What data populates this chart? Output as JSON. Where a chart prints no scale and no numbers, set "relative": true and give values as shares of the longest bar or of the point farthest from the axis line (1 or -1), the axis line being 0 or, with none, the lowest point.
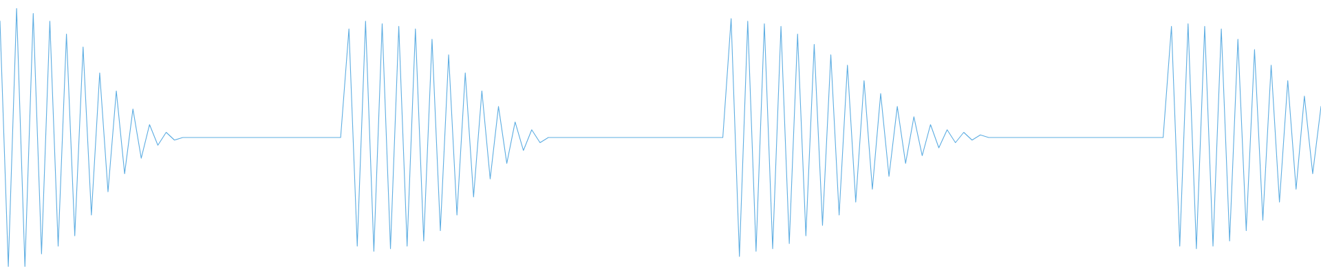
{
  "chart_data": {
    "type": "line",
    "relative": true,
    "categories": [
      null,
      null,
      null,
      null,
      null,
      null,
      null,
      null,
      null,
      null,
      null,
      null,
      null,
      null,
      null,
      null,
      null,
      null,
      null,
      null,
      null,
      null,
      null,
      null,
      null,
      null,
      null,
      null,
      null,
      null,
      null,
      null,
      null,
      null,
      null,
      null,
      null,
      null,
      null,
      null,
      null,
      null,
      null,
      null,
      null,
      null,
      null,
      null,
      null,
      null,
      null,
      null,
      null,
      null,
      null,
      null,
      null,
      null,
      null,
      null,
      null,
      null,
      null,
      null,
      null,
      null,
      null,
      null,
      null,
      null,
      null,
      null,
      null,
      null,
      null,
      null,
      null,
      null,
      null,
      null,
      null,
      null,
      null,
      null,
      null,
      null,
      null,
      null,
      null,
      null,
      null,
      null,
      null,
      null,
      null,
      null,
      null,
      null,
      null,
      null,
      null,
      null,
      null,
      null,
      null,
      null,
      null,
      null,
      null,
      null,
      null,
      null,
      null,
      null,
      null,
      null,
      null,
      null,
      null,
      null,
      null,
      null,
      null,
      null,
      null,
      null,
      null,
      null,
      null,
      null,
      null,
      null,
      null,
      null,
      null,
      null,
      null,
      null,
      null,
      null,
      null,
      null,
      null,
      null,
      null,
      null,
      null,
      null,
      null,
      null,
      null,
      null,
      null,
      null,
      null,
      null,
      null,
      null,
      null,
      null
    ],
    "series": [
      {
        "color": "#5dade2",
        "values": [
          0.95,
          0,
          1,
          0,
          0.98,
          0.05,
          0.95,
          0.08,
          0.9,
          0.12,
          0.85,
          0.2,
          0.75,
          0.29,
          0.68,
          0.36,
          0.61,
          0.42,
          0.55,
          0.47,
          0.52,
          0.49,
          0.5,
          0.5,
          0.5,
          0.5,
          0.5,
          0.5,
          0.5,
          0.5,
          0.5,
          0.5,
          0.5,
          0.5,
          0.5,
          0.5,
          0.5,
          0.5,
          0.5,
          0.5,
          0.5,
          0.5,
          0.92,
          0.08,
          0.95,
          0.06,
          0.94,
          0.07,
          0.93,
          0.08,
          0.92,
          0.1,
          0.88,
          0.14,
          0.82,
          0.2,
          0.75,
          0.27,
          0.68,
          0.34,
          0.62,
          0.4,
          0.56,
          0.45,
          0.53,
          0.48,
          0.5,
          0.5,
          0.5,
          0.5,
          0.5,
          0.5,
          0.5,
          0.5,
          0.5,
          0.5,
          0.5,
          0.5,
          0.5,
          0.5,
          0.5,
          0.5,
          0.5,
          0.5,
          0.5,
          0.5,
          0.5,
          0.5,
          0.96,
          0.04,
          0.95,
          0.06,
          0.94,
          0.07,
          0.93,
          0.09,
          0.9,
          0.12,
          0.86,
          0.16,
          0.82,
          0.2,
          0.78,
          0.25,
          0.72,
          0.3,
          0.67,
          0.35,
          0.62,
          0.4,
          0.58,
          0.43,
          0.55,
          0.46,
          0.53,
          0.48,
          0.52,
          0.49,
          0.51,
          0.5,
          0.5,
          0.5,
          0.5,
          0.5,
          0.5,
          0.5,
          0.5,
          0.5,
          0.5,
          0.5,
          0.5,
          0.5,
          0.5,
          0.5,
          0.5,
          0.5,
          0.5,
          0.5,
          0.5,
          0.5,
          0.5,
          0.93,
          0.08,
          0.94,
          0.07,
          0.93,
          0.08,
          0.92,
          0.1,
          0.88,
          0.14,
          0.84,
          0.18,
          0.78,
          0.25,
          0.72,
          0.3,
          0.66,
          0.36,
          0.62
        ]
      }
    ]
  }
}
